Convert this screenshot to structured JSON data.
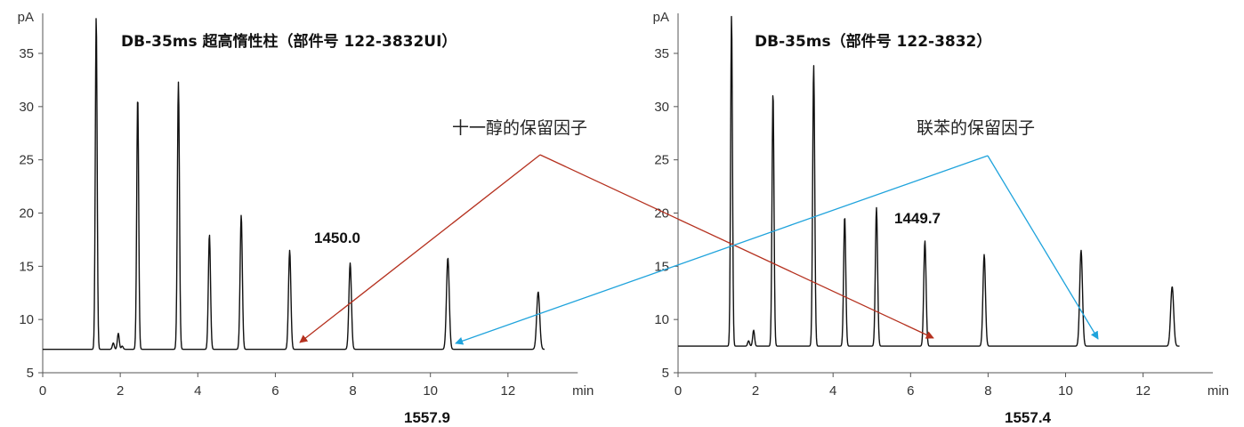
{
  "chart_data": [
    {
      "type": "line",
      "title": "DB-35ms 超高惰性柱（部件号 122-3832UI）",
      "ylabel": "pA",
      "xlabel": "min",
      "xlim": [
        0,
        13.8
      ],
      "ylim": [
        5,
        39
      ],
      "xticks": [
        0,
        2,
        4,
        6,
        8,
        10,
        12
      ],
      "yticks": [
        5,
        10,
        15,
        20,
        25,
        30,
        35
      ],
      "baseline": 7.2,
      "grid": false,
      "peaks": [
        {
          "rt": 1.38,
          "height": 38.5
        },
        {
          "rt": 1.82,
          "height": 7.8
        },
        {
          "rt": 1.95,
          "height": 8.7
        },
        {
          "rt": 2.05,
          "height": 7.5
        },
        {
          "rt": 2.45,
          "height": 31.0
        },
        {
          "rt": 3.5,
          "height": 32.3
        },
        {
          "rt": 4.3,
          "height": 18.0
        },
        {
          "rt": 5.12,
          "height": 19.8
        },
        {
          "rt": 6.37,
          "height": 16.5
        },
        {
          "rt": 7.93,
          "height": 15.3
        },
        {
          "rt": 10.45,
          "height": 15.8
        },
        {
          "rt": 12.78,
          "height": 12.6
        }
      ],
      "labels": [
        {
          "text": "1450.0"
        },
        {
          "text": "1557.9"
        }
      ]
    },
    {
      "type": "line",
      "title": "DB-35ms（部件号 122-3832）",
      "ylabel": "pA",
      "xlabel": "min",
      "xlim": [
        0,
        13.8
      ],
      "ylim": [
        5,
        39
      ],
      "xticks": [
        0,
        2,
        4,
        6,
        8,
        10,
        12
      ],
      "yticks": [
        5,
        10,
        15,
        20,
        25,
        30,
        35
      ],
      "baseline": 7.5,
      "grid": false,
      "peaks": [
        {
          "rt": 1.38,
          "height": 38.6
        },
        {
          "rt": 1.82,
          "height": 8.0
        },
        {
          "rt": 1.95,
          "height": 9.0
        },
        {
          "rt": 2.45,
          "height": 31.4
        },
        {
          "rt": 3.5,
          "height": 33.9
        },
        {
          "rt": 4.3,
          "height": 19.7
        },
        {
          "rt": 5.12,
          "height": 20.5
        },
        {
          "rt": 6.37,
          "height": 17.4
        },
        {
          "rt": 7.9,
          "height": 16.1
        },
        {
          "rt": 10.4,
          "height": 16.5
        },
        {
          "rt": 12.75,
          "height": 13.1
        }
      ],
      "labels": [
        {
          "text": "1449.7"
        },
        {
          "text": "1557.4"
        }
      ]
    }
  ],
  "annotations": {
    "undecanol": {
      "label": "十一醇的保留因子",
      "color": "#B5311F"
    },
    "biphenyl": {
      "label": "联苯的保留因子",
      "color": "#1FA3DC"
    }
  }
}
